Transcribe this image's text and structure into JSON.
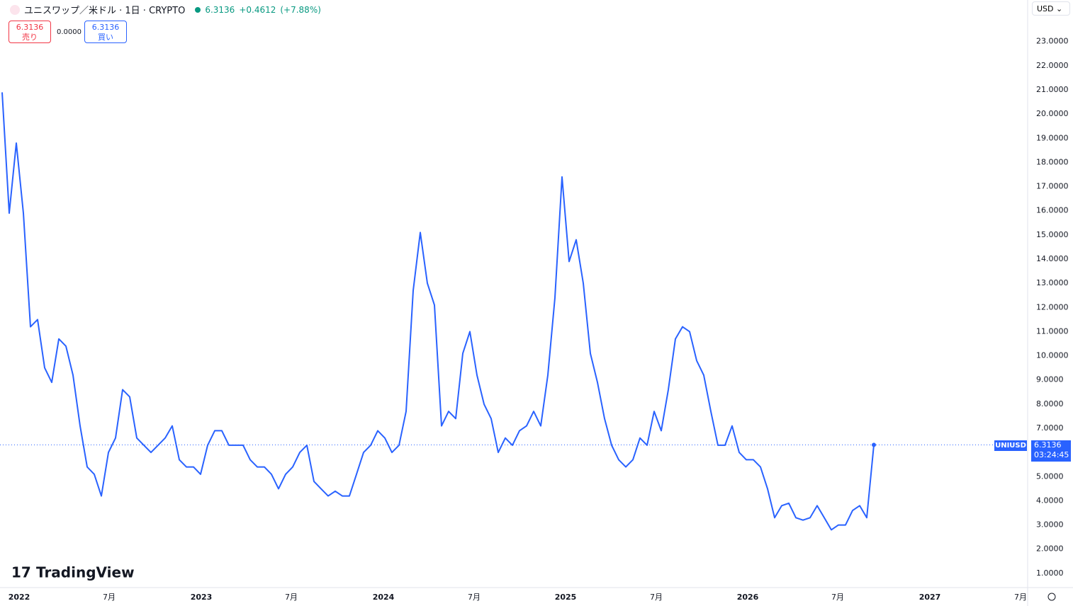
{
  "header": {
    "symbol": "ユニスワップ／米ドル · 1日 · CRYPTO",
    "last": "6.3136",
    "change": "+0.4612",
    "change_pct": "(+7.88%)",
    "sell_price": "6.3136",
    "sell_label": "売り",
    "spread": "0.0000",
    "buy_price": "6.3136",
    "buy_label": "買い",
    "currency": "USD",
    "logo": "TradingView"
  },
  "price_tag": {
    "ticker": "UNIUSD",
    "price": "6.3136",
    "countdown": "03:24:45"
  },
  "chart_data": {
    "type": "line",
    "color": "#2962ff",
    "grid": true,
    "values": [
      20.9,
      15.9,
      18.8,
      15.9,
      11.2,
      11.5,
      9.5,
      8.9,
      10.7,
      10.4,
      9.2,
      7.1,
      5.4,
      5.1,
      4.2,
      6.0,
      6.6,
      8.6,
      8.3,
      6.6,
      6.3,
      6.0,
      6.3,
      6.6,
      7.1,
      5.7,
      5.4,
      5.4,
      5.1,
      6.3,
      6.9,
      6.9,
      6.3,
      6.3,
      6.3,
      5.7,
      5.4,
      5.4,
      5.1,
      4.5,
      5.1,
      5.4,
      6.0,
      6.3,
      4.8,
      4.5,
      4.2,
      4.4,
      4.2,
      4.2,
      5.1,
      6.0,
      6.3,
      6.9,
      6.6,
      6.0,
      6.3,
      7.7,
      12.7,
      15.1,
      13.0,
      12.1,
      7.1,
      7.7,
      7.4,
      10.1,
      11.0,
      9.2,
      8.0,
      7.4,
      6.0,
      6.6,
      6.3,
      6.9,
      7.1,
      7.7,
      7.1,
      9.2,
      12.4,
      17.4,
      13.9,
      14.8,
      13.0,
      10.1,
      8.9,
      7.4,
      6.3,
      5.7,
      5.4,
      5.7,
      6.6,
      6.3,
      7.7,
      6.9,
      8.6,
      10.7,
      11.2,
      11.0,
      9.8,
      9.2,
      7.7,
      6.3,
      6.3,
      7.1,
      6.0,
      5.7,
      5.7,
      5.4,
      4.5,
      3.3,
      3.8,
      3.9,
      3.3,
      3.2,
      3.3,
      3.8,
      3.3,
      2.8,
      3.0,
      3.0,
      3.6,
      3.8,
      3.3,
      6.3136
    ],
    "xlim": [
      -0.3,
      144.7
    ],
    "xticks": [
      {
        "value": 2.4,
        "label": "2022"
      },
      {
        "value": 15.1,
        "label": "7月"
      },
      {
        "value": 28.1,
        "label": "2023"
      },
      {
        "value": 40.8,
        "label": "7月"
      },
      {
        "value": 53.8,
        "label": "2024"
      },
      {
        "value": 66.6,
        "label": "7月"
      },
      {
        "value": 79.5,
        "label": "2025"
      },
      {
        "value": 92.3,
        "label": "7月"
      },
      {
        "value": 105.2,
        "label": "2026"
      },
      {
        "value": 117.9,
        "label": "7月"
      },
      {
        "value": 130.9,
        "label": "2027"
      },
      {
        "value": 143.7,
        "label": "7月"
      }
    ],
    "ylim": [
      0.41,
      24.72
    ],
    "yticks": [
      {
        "value": 1,
        "label": "1.0000"
      },
      {
        "value": 2,
        "label": "2.0000"
      },
      {
        "value": 3,
        "label": "3.0000"
      },
      {
        "value": 4,
        "label": "4.0000"
      },
      {
        "value": 5,
        "label": "5.0000"
      },
      {
        "value": 7,
        "label": "7.0000"
      },
      {
        "value": 8,
        "label": "8.0000"
      },
      {
        "value": 9,
        "label": "9.0000"
      },
      {
        "value": 10,
        "label": "10.0000"
      },
      {
        "value": 11,
        "label": "11.0000"
      },
      {
        "value": 12,
        "label": "12.0000"
      },
      {
        "value": 13,
        "label": "13.0000"
      },
      {
        "value": 14,
        "label": "14.0000"
      },
      {
        "value": 15,
        "label": "15.0000"
      },
      {
        "value": 16,
        "label": "16.0000"
      },
      {
        "value": 17,
        "label": "17.0000"
      },
      {
        "value": 18,
        "label": "18.0000"
      },
      {
        "value": 19,
        "label": "19.0000"
      },
      {
        "value": 20,
        "label": "20.0000"
      },
      {
        "value": 21,
        "label": "21.0000"
      },
      {
        "value": 22,
        "label": "22.0000"
      },
      {
        "value": 23,
        "label": "23.0000"
      }
    ]
  }
}
